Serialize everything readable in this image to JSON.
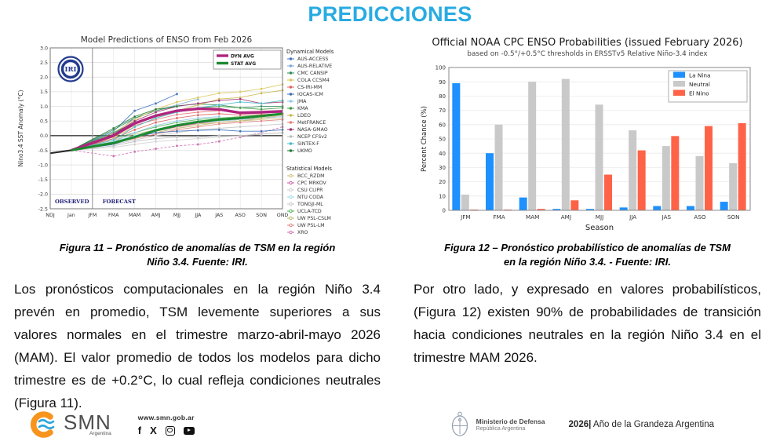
{
  "page": {
    "title": "PREDICCIONES"
  },
  "colors": {
    "title": "#29ABE2",
    "la_nina": "#1e90ff",
    "neutral": "#c9c9c9",
    "el_nino": "#ff6347",
    "dyn_avg": "#b0247e",
    "stat_avg": "#1b8a2f"
  },
  "left_figure": {
    "caption_line1": "Figura 11 – Pronóstico de anomalías de TSM en la región",
    "caption_line2": "Niño 3.4. Fuente: IRI.",
    "paragraph": "Los pronósticos computacionales en la región Niño 3.4 prevén en promedio, TSM levemente superiores a sus valores normales en el trimestre marzo-abril-mayo 2026 (MAM). El valor promedio de todos los modelos para dicho trimestre es de +0.2°C, lo cual refleja condiciones neutrales (Figura 11)."
  },
  "right_figure": {
    "caption_line1": "Figura 12 – Pronóstico probabilístico de anomalías de TSM",
    "caption_line2": "en la región Niño 3.4. - Fuente: IRI.",
    "paragraph": "Por otro lado, y expresado en valores probabilísticos, (Figura 12) existen 90% de probabilidades de transición hacia condiciones neutrales en la región Niño 3.4 en el trimestre MAM 2026."
  },
  "footer": {
    "smn_name": "SMN",
    "smn_sub": "Argentina",
    "url": "www.smn.gob.ar",
    "social_glyphs": {
      "facebook": "f",
      "x": "X"
    },
    "ministry_line1": "Ministerio de Defensa",
    "ministry_line2": "República Argentina",
    "year_bold": "2026|",
    "year_text": " Año de la Grandeza Argentina"
  },
  "chart_data": [
    {
      "type": "line",
      "title": "Model Predictions of ENSO from Feb 2026",
      "logo": "IRI",
      "ylabel": "Nino3.4 SST Anomaly (°C)",
      "ylim": [
        -2.5,
        3.0
      ],
      "ytick_step": 0.5,
      "x": [
        "NDJ",
        "Jan",
        "JFM",
        "FMA",
        "MAM",
        "AMJ",
        "MJJ",
        "JJA",
        "JAS",
        "ASO",
        "SON",
        "OND"
      ],
      "region_labels": [
        "OBSERVED",
        "FORECAST"
      ],
      "legend_headers": [
        "Dynamical Models",
        "Statistical Models"
      ],
      "observed": {
        "name": "Observed",
        "color": "#2b2b2b",
        "w": 2.2,
        "values": [
          -0.6,
          -0.5,
          null,
          null,
          null,
          null,
          null,
          null,
          null,
          null,
          null,
          null
        ]
      },
      "averages": [
        {
          "name": "DYN AVG",
          "color": "#b0247e",
          "w": 3.4,
          "values": [
            null,
            -0.5,
            null,
            0.0,
            0.42,
            0.68,
            0.85,
            0.92,
            0.9,
            0.78,
            0.8,
            0.83
          ]
        },
        {
          "name": "STAT AVG",
          "color": "#1b8a2f",
          "w": 3.0,
          "values": [
            null,
            -0.5,
            null,
            -0.25,
            -0.05,
            0.18,
            0.35,
            0.47,
            0.55,
            0.6,
            0.67,
            0.75
          ]
        }
      ],
      "dynamical": [
        {
          "name": "AUS-ACCESS",
          "color": "#3f74c4",
          "values": [
            null,
            -0.5,
            null,
            0.15,
            0.85,
            1.1,
            1.42,
            null,
            null,
            null,
            null,
            null
          ]
        },
        {
          "name": "AUS-RELATIVE",
          "color": "#7aa7d8",
          "values": [
            null,
            -0.5,
            null,
            0.05,
            0.6,
            0.85,
            1.05,
            1.25,
            null,
            null,
            null,
            null
          ]
        },
        {
          "name": "CMC CANSIP",
          "color": "#2e8b57",
          "values": [
            null,
            -0.5,
            null,
            0.2,
            0.6,
            0.85,
            1.02,
            1.08,
            1.05,
            0.95,
            1.0,
            1.0
          ]
        },
        {
          "name": "COLA CCSM4",
          "color": "#d9c75a",
          "values": [
            null,
            -0.5,
            null,
            0.1,
            0.55,
            0.9,
            1.15,
            1.3,
            1.45,
            1.5,
            1.6,
            1.75
          ]
        },
        {
          "name": "CS-IRI-MM",
          "color": "#e06060",
          "values": [
            null,
            -0.5,
            null,
            -0.1,
            0.2,
            0.45,
            0.6,
            0.7,
            0.75,
            0.7,
            0.72,
            0.75
          ]
        },
        {
          "name": "IOCAS-ICM",
          "color": "#3b6fb5",
          "values": [
            null,
            -0.5,
            null,
            -0.3,
            -0.05,
            0.1,
            0.15,
            0.18,
            0.2,
            0.15,
            0.15,
            0.2
          ]
        },
        {
          "name": "JMA",
          "color": "#8fc8e8",
          "values": [
            null,
            -0.5,
            null,
            -0.2,
            0.1,
            0.35,
            0.5,
            0.6,
            0.65,
            null,
            null,
            null
          ]
        },
        {
          "name": "KMA",
          "color": "#3c9a3c",
          "values": [
            null,
            -0.5,
            null,
            0.1,
            0.45,
            0.7,
            0.85,
            0.95,
            1.0,
            0.95,
            0.9,
            0.95
          ]
        },
        {
          "name": "LDEO",
          "color": "#c8b84a",
          "values": [
            null,
            -0.5,
            null,
            -0.05,
            0.3,
            0.6,
            0.85,
            1.05,
            1.25,
            1.3,
            1.45,
            1.55
          ]
        },
        {
          "name": "MetFRANCE",
          "color": "#e87878",
          "values": [
            null,
            -0.5,
            null,
            0.0,
            0.35,
            0.55,
            0.72,
            0.8,
            0.85,
            null,
            null,
            null
          ]
        },
        {
          "name": "NASA-GMAO",
          "color": "#a03070",
          "values": [
            null,
            -0.5,
            null,
            0.05,
            0.5,
            0.8,
            1.0,
            1.1,
            1.2,
            1.25,
            1.1,
            1.15
          ]
        },
        {
          "name": "NCEP CFSv2",
          "color": "#bdbdbd",
          "values": [
            null,
            -0.5,
            null,
            -0.35,
            -0.2,
            -0.1,
            -0.05,
            -0.05,
            0.0,
            0.0,
            0.05,
            0.1
          ]
        },
        {
          "name": "SINTEX-F",
          "color": "#45b8c8",
          "values": [
            null,
            -0.5,
            null,
            -0.15,
            0.3,
            0.6,
            0.8,
            0.95,
            1.05,
            1.15,
            1.1,
            1.2
          ]
        },
        {
          "name": "UKMO",
          "color": "#1f7a33",
          "values": [
            null,
            -0.5,
            null,
            0.25,
            0.65,
            0.9,
            1.0,
            null,
            null,
            null,
            null,
            null
          ]
        }
      ],
      "statistical": [
        {
          "name": "BCC_RZDM",
          "color": "#cdbe70",
          "values": [
            null,
            -0.5,
            null,
            -0.15,
            0.05,
            0.2,
            0.3,
            0.4,
            0.45,
            0.5,
            0.55,
            0.6
          ]
        },
        {
          "name": "CPC MRKOV",
          "color": "#c85aa0",
          "values": [
            null,
            -0.5,
            null,
            -0.25,
            -0.05,
            0.15,
            0.3,
            0.42,
            0.5,
            0.55,
            0.6,
            0.65
          ]
        },
        {
          "name": "CSU CLIPR",
          "color": "#cfcfcf",
          "values": [
            null,
            -0.5,
            null,
            -0.4,
            -0.3,
            -0.2,
            -0.15,
            -0.1,
            -0.05,
            0.0,
            0.05,
            0.1
          ]
        },
        {
          "name": "NTU CODA",
          "color": "#9ad8e8",
          "values": [
            null,
            -0.5,
            null,
            -0.2,
            0.0,
            0.2,
            0.35,
            0.45,
            0.5,
            0.55,
            0.6,
            0.65
          ]
        },
        {
          "name": "TONGJI-ML",
          "color": "#c4c4c4",
          "values": [
            null,
            -0.5,
            null,
            -0.3,
            -0.15,
            0.0,
            0.1,
            0.2,
            0.25,
            0.3,
            0.35,
            0.4
          ]
        },
        {
          "name": "UCLA-TCD",
          "color": "#4caf50",
          "values": [
            null,
            -0.5,
            null,
            -0.1,
            0.1,
            0.3,
            0.45,
            0.55,
            0.6,
            0.65,
            0.7,
            0.75
          ]
        },
        {
          "name": "UW PSL-CSLM",
          "color": "#bdb76b",
          "values": [
            null,
            -0.5,
            null,
            -0.2,
            -0.05,
            0.1,
            0.25,
            0.35,
            0.45,
            0.5,
            0.6,
            0.7
          ]
        },
        {
          "name": "UW PSL-LM",
          "color": "#e08080",
          "values": [
            null,
            -0.5,
            null,
            -0.25,
            -0.1,
            0.05,
            0.2,
            0.3,
            0.4,
            0.45,
            0.5,
            0.55
          ]
        },
        {
          "name": "XRO",
          "color": "#d070b0",
          "dash": true,
          "values": [
            null,
            -0.5,
            null,
            -0.7,
            -0.55,
            -0.45,
            -0.35,
            -0.3,
            -0.2,
            -0.05,
            0.1,
            0.3
          ]
        }
      ]
    },
    {
      "type": "bar",
      "title": "Official NOAA CPC ENSO Probabilities (issued February 2026)",
      "subtitle": "based on -0.5°/+0.5°C thresholds in ERSSTv5 Relative Niño-3.4 index",
      "xlabel": "Season",
      "ylabel": "Percent Chance (%)",
      "ylim": [
        0,
        100
      ],
      "ytick_step": 10,
      "categories": [
        "JFM",
        "FMA",
        "MAM",
        "AMJ",
        "MJJ",
        "JJA",
        "JAS",
        "ASO",
        "SON"
      ],
      "series": [
        {
          "name": "La Nina",
          "color": "#1e90ff",
          "values": [
            89,
            40,
            9,
            1,
            1,
            2,
            3,
            3,
            6
          ]
        },
        {
          "name": "Neutral",
          "color": "#c9c9c9",
          "values": [
            11,
            60,
            90,
            92,
            74,
            56,
            45,
            38,
            33
          ]
        },
        {
          "name": "El Nino",
          "color": "#ff6347",
          "values": [
            0.5,
            0.5,
            1,
            7,
            25,
            42,
            52,
            59,
            61
          ]
        }
      ],
      "legend_position": "top-right"
    }
  ]
}
